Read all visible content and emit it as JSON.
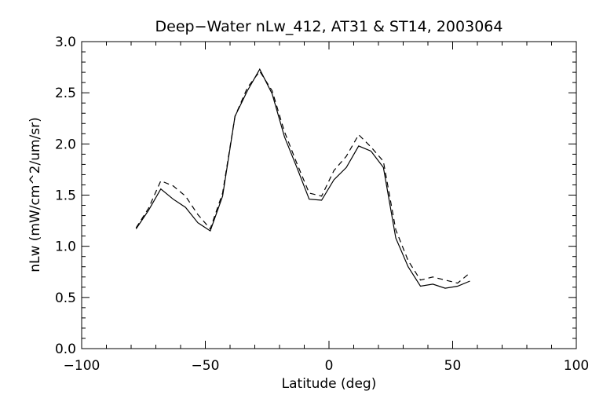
{
  "chart_data": {
    "type": "line",
    "title": "Deep−Water nLw_412, AT31 & ST14, 2003064",
    "xlabel": "Latitude (deg)",
    "ylabel": "nLw (mW/cm^2/um/sr)",
    "xlim": [
      -100,
      100
    ],
    "ylim": [
      0.0,
      3.0
    ],
    "xticks": [
      -100,
      -50,
      0,
      50,
      100
    ],
    "xtick_labels": [
      "−100",
      "−50",
      "0",
      "50",
      "100"
    ],
    "yticks": [
      0.0,
      0.5,
      1.0,
      1.5,
      2.0,
      2.5,
      3.0
    ],
    "ytick_labels": [
      "0.0",
      "0.5",
      "1.0",
      "1.5",
      "2.0",
      "2.5",
      "3.0"
    ],
    "grid": false,
    "series": [
      {
        "style": "solid",
        "x": [
          -78,
          -73,
          -68,
          -63,
          -58,
          -53,
          -48,
          -43,
          -38,
          -33,
          -28,
          -23,
          -18,
          -13,
          -8,
          -3,
          2,
          7,
          12,
          17,
          22,
          27,
          32,
          37,
          42,
          47,
          52,
          57
        ],
        "y": [
          1.17,
          1.35,
          1.56,
          1.46,
          1.38,
          1.23,
          1.15,
          1.49,
          2.27,
          2.52,
          2.73,
          2.49,
          2.07,
          1.77,
          1.46,
          1.45,
          1.65,
          1.77,
          1.98,
          1.93,
          1.77,
          1.08,
          0.8,
          0.61,
          0.63,
          0.59,
          0.61,
          0.66
        ]
      },
      {
        "style": "dashed",
        "x": [
          -78,
          -73,
          -68,
          -63,
          -58,
          -53,
          -48,
          -43,
          -38,
          -33,
          -28,
          -23,
          -18,
          -13,
          -8,
          -3,
          2,
          7,
          12,
          17,
          22,
          27,
          32,
          37,
          42,
          47,
          52,
          57
        ],
        "y": [
          1.18,
          1.37,
          1.64,
          1.59,
          1.49,
          1.31,
          1.17,
          1.52,
          2.27,
          2.55,
          2.71,
          2.52,
          2.12,
          1.81,
          1.52,
          1.49,
          1.74,
          1.88,
          2.09,
          1.97,
          1.83,
          1.16,
          0.86,
          0.67,
          0.7,
          0.67,
          0.64,
          0.74
        ]
      }
    ]
  }
}
